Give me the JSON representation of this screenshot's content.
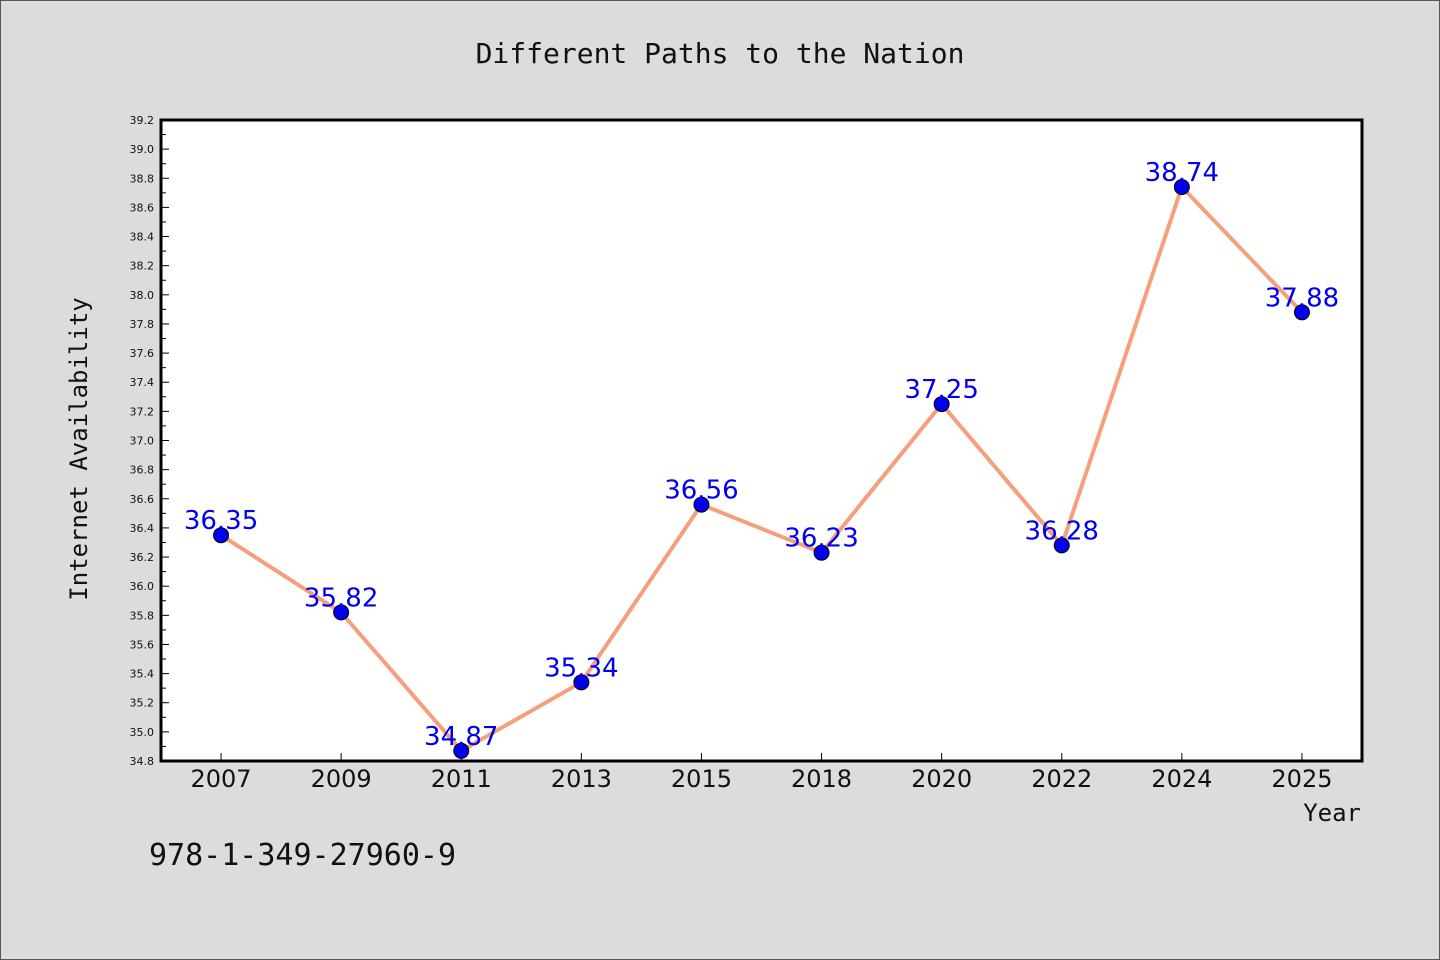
{
  "chart_data": {
    "type": "line",
    "title": "Different Paths to the Nation",
    "xlabel": "Year",
    "ylabel": "Internet Availability",
    "categories": [
      "2007",
      "2009",
      "2011",
      "2013",
      "2015",
      "2018",
      "2020",
      "2022",
      "2024",
      "2025"
    ],
    "series": [
      {
        "values": [
          36.35,
          35.82,
          34.87,
          35.34,
          36.56,
          36.23,
          37.25,
          36.28,
          38.74,
          37.88
        ]
      }
    ],
    "data_labels": [
      "36.35",
      "35.82",
      "34.87",
      "35.34",
      "36.56",
      "36.23",
      "37.25",
      "36.28",
      "38.74",
      "37.88"
    ],
    "ylim": [
      34.8,
      39.2
    ],
    "yticks": [
      "34.8",
      "35.0",
      "35.2",
      "35.4",
      "35.6",
      "35.8",
      "36.0",
      "36.2",
      "36.4",
      "36.6",
      "36.8",
      "37.0",
      "37.2",
      "37.4",
      "37.6",
      "37.8",
      "38.0",
      "38.2",
      "38.4",
      "38.6",
      "38.8",
      "39.0",
      "39.2"
    ],
    "grid": false,
    "legend": "none",
    "colors": {
      "line": "#f4a07c",
      "marker": "#0000ee",
      "label": "#0000ee",
      "background": "#dcdcdc",
      "plot_background": "#ffffff"
    }
  },
  "footer": {
    "isbn": "978-1-349-27960-9"
  }
}
